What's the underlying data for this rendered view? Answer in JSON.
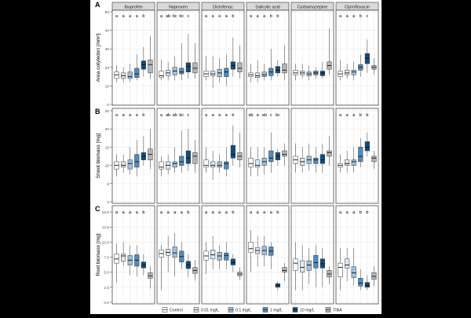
{
  "chart_data": {
    "type": "box",
    "facets": [
      "Ibuprofen",
      "Naproxen",
      "Diclofenac",
      "Salicylic acid",
      "Carbamazepine",
      "Ciprofloxacin"
    ],
    "groups": [
      "Control",
      "0.01 mg/L",
      "0.1 mg/L",
      "1 mg/L",
      "10 mg/L",
      "TIBA"
    ],
    "colors": [
      "#ffffff",
      "#dbe9f6",
      "#9dc0de",
      "#4f8cbf",
      "#0f4c7d",
      "#b5b5b5"
    ],
    "box_stat_order": [
      "median",
      "q1",
      "q3",
      "whisker_low",
      "whisker_high"
    ],
    "grid": true,
    "legend_position": "bottom",
    "rows": [
      {
        "panel": "A",
        "ylabel": "Area cotyledon [mm²]",
        "ylim": [
          0,
          50
        ],
        "ticks": [
          "0",
          "10",
          "20",
          "30",
          "40",
          "50"
        ],
        "tick_values": [
          0,
          10,
          20,
          30,
          40,
          50
        ],
        "letters": [
          [
            "a",
            "a",
            "a",
            "a",
            "b"
          ],
          [
            "a",
            "ab",
            "bc",
            "bc",
            "c"
          ],
          [
            "a",
            "a",
            "a",
            "a",
            "b"
          ],
          [
            "a",
            "a",
            "a",
            "b",
            "b"
          ],
          [],
          [
            "a",
            "a",
            "a",
            "b",
            "c"
          ]
        ],
        "boxes": [
          [
            [
              16,
              14,
              17.5,
              12,
              21
            ],
            [
              15.5,
              14,
              17,
              12,
              20
            ],
            [
              15,
              14,
              17.5,
              12,
              22
            ],
            [
              16.5,
              14.5,
              19.5,
              13,
              27
            ],
            [
              21.5,
              19,
              23.5,
              15,
              31
            ],
            [
              21.5,
              17,
              24,
              14,
              37
            ]
          ],
          [
            [
              15.5,
              14.5,
              18,
              13,
              24
            ],
            [
              17,
              15.5,
              18.5,
              13,
              23
            ],
            [
              18,
              16,
              20,
              13,
              26
            ],
            [
              17.5,
              16.5,
              19.5,
              13,
              33
            ],
            [
              20.5,
              17.5,
              22.5,
              14,
              38
            ],
            [
              19.5,
              17,
              22.5,
              14,
              33
            ]
          ],
          [
            [
              16.5,
              15,
              18,
              13,
              26
            ],
            [
              16.5,
              15.5,
              18,
              9,
              26
            ],
            [
              17,
              15,
              19,
              12,
              25
            ],
            [
              17.5,
              15,
              19.5,
              10,
              27
            ],
            [
              21,
              19,
              23,
              15,
              36
            ],
            [
              19.5,
              17.5,
              22.5,
              14,
              32
            ]
          ],
          [
            [
              16,
              15,
              17,
              12,
              22
            ],
            [
              15.5,
              14.5,
              17,
              12,
              24
            ],
            [
              16,
              15,
              17.5,
              13,
              22
            ],
            [
              17.5,
              15.5,
              19.5,
              13,
              30
            ],
            [
              18.5,
              17,
              20.5,
              15,
              24
            ],
            [
              18.5,
              17,
              22,
              13,
              32
            ]
          ],
          [
            [
              17,
              16,
              18.5,
              13,
              22
            ],
            [
              17,
              16,
              18,
              14,
              22
            ],
            [
              16.5,
              15.5,
              17.5,
              13,
              21
            ],
            [
              17,
              16,
              18,
              14,
              20
            ],
            [
              17,
              15.5,
              18,
              14,
              23
            ],
            [
              21,
              19,
              23,
              16,
              41
            ]
          ],
          [
            [
              16.5,
              15,
              18,
              13,
              24
            ],
            [
              17,
              16,
              18.5,
              14,
              22
            ],
            [
              17.5,
              16,
              18.5,
              13,
              23
            ],
            [
              20,
              18.5,
              21.5,
              15,
              27
            ],
            [
              25,
              22,
              27.5,
              17,
              35
            ],
            [
              20,
              19,
              21,
              16,
              25
            ]
          ]
        ]
      },
      {
        "panel": "B",
        "ylabel": "Shoot biomass [mg]",
        "ylim": [
          0,
          25
        ],
        "ticks": [
          "0",
          "5",
          "10",
          "15",
          "20",
          "25"
        ],
        "tick_values": [
          0,
          5,
          10,
          15,
          20,
          25
        ],
        "letters": [
          [
            "a",
            "a",
            "a",
            "a",
            "b"
          ],
          [
            "a",
            "ab",
            "ab",
            "bc",
            "c"
          ],
          [
            "a",
            "a",
            "a",
            "a",
            "b"
          ],
          [
            "ab",
            "a",
            "ab",
            "c",
            "bc"
          ],
          [],
          [
            "a",
            "a",
            "a",
            "b",
            "b"
          ]
        ],
        "boxes": [
          [
            [
              10,
              9,
              11,
              7,
              13
            ],
            [
              10,
              9.5,
              11,
              8,
              13
            ],
            [
              10.5,
              9,
              11.5,
              7.5,
              15
            ],
            [
              11,
              9.5,
              13,
              7,
              17
            ],
            [
              12.5,
              11.5,
              13.5,
              10,
              18
            ],
            [
              13,
              11.5,
              14.5,
              9,
              20
            ]
          ],
          [
            [
              9.5,
              9,
              11,
              7,
              12.5
            ],
            [
              10,
              9,
              11,
              7.5,
              13
            ],
            [
              10.5,
              9.5,
              11,
              8,
              15
            ],
            [
              11,
              10,
              12.5,
              8,
              19.5
            ],
            [
              12,
              10.5,
              14,
              8.5,
              20
            ],
            [
              12.5,
              10.5,
              13.5,
              8,
              17
            ]
          ],
          [
            [
              10,
              9.5,
              11.5,
              8,
              15
            ],
            [
              10,
              9.5,
              11,
              6,
              14
            ],
            [
              10,
              9.5,
              11,
              8,
              13
            ],
            [
              10.5,
              9,
              11,
              7,
              15
            ],
            [
              13,
              12,
              15.5,
              10,
              21
            ],
            [
              12.5,
              11.5,
              13.5,
              9.5,
              19
            ]
          ],
          [
            [
              10.5,
              9.5,
              12,
              7,
              15
            ],
            [
              10,
              9.5,
              11.5,
              7,
              15
            ],
            [
              11,
              10,
              12,
              7.5,
              15
            ],
            [
              12,
              11,
              14,
              8,
              19
            ],
            [
              12.5,
              11.5,
              13.5,
              10,
              14.5
            ],
            [
              13,
              12.5,
              14,
              10,
              16
            ]
          ],
          [
            [
              11.5,
              10.5,
              12.5,
              8,
              16
            ],
            [
              11,
              10,
              12,
              8,
              15
            ],
            [
              11.5,
              10.5,
              12.5,
              8.5,
              16
            ],
            [
              11.5,
              10.5,
              12,
              8,
              15
            ],
            [
              11.5,
              10.5,
              13,
              8,
              16
            ],
            [
              13.5,
              12.5,
              14,
              10,
              18
            ]
          ],
          [
            [
              10,
              9.5,
              10.5,
              8,
              13
            ],
            [
              10.5,
              10,
              11.5,
              8,
              14
            ],
            [
              11,
              10,
              11.5,
              8,
              15
            ],
            [
              12.5,
              11,
              15,
              9.5,
              17.5
            ],
            [
              15,
              14,
              16.5,
              12.5,
              19
            ],
            [
              12,
              11,
              12.5,
              9,
              14
            ]
          ]
        ]
      },
      {
        "panel": "C",
        "ylabel": "Root biomass [mg]",
        "ylim": [
          0,
          15
        ],
        "ticks": [
          "0.0",
          "2.5",
          "5.0",
          "7.5",
          "10.0",
          "12.5",
          "15.0"
        ],
        "tick_values": [
          0,
          2.5,
          5,
          7.5,
          10,
          12.5,
          15
        ],
        "letters": [
          [
            "a",
            "a",
            "a",
            "a",
            "b"
          ],
          [
            "a",
            "a",
            "a",
            "a",
            "b"
          ],
          [
            "a",
            "a",
            "a",
            "a",
            "b"
          ],
          [
            "a",
            "a",
            "a",
            "a",
            "b"
          ],
          [],
          [
            "a",
            "a",
            "a",
            "b",
            "b"
          ]
        ],
        "boxes": [
          [
            [
              7.2,
              6.5,
              8,
              3.3,
              9.8
            ],
            [
              7.7,
              6.8,
              8,
              6,
              10
            ],
            [
              7,
              6.2,
              7.8,
              4.5,
              9.5
            ],
            [
              7,
              6,
              7.9,
              4.3,
              9.5
            ],
            [
              6.2,
              5.7,
              6.7,
              4.5,
              8
            ],
            [
              4.4,
              4,
              4.9,
              2.3,
              6
            ]
          ],
          [
            [
              8.1,
              7.5,
              8.7,
              2,
              9.5
            ],
            [
              8.3,
              7.8,
              8.8,
              5,
              11
            ],
            [
              8.2,
              7.5,
              9.2,
              4.3,
              11.5
            ],
            [
              7.6,
              6.7,
              8.5,
              5.5,
              10
            ],
            [
              6.2,
              5.6,
              6.8,
              4.2,
              8
            ],
            [
              5.3,
              4.8,
              5.8,
              3.6,
              7
            ]
          ],
          [
            [
              7.7,
              7,
              8.5,
              4.7,
              10
            ],
            [
              7.9,
              7.2,
              8.7,
              5.5,
              11
            ],
            [
              7.7,
              7,
              8.3,
              5.5,
              9.5
            ],
            [
              7.8,
              7,
              8.2,
              5.5,
              10
            ],
            [
              6.6,
              6.2,
              7.2,
              5,
              8
            ],
            [
              4.7,
              4.4,
              5,
              3.7,
              5.8
            ]
          ],
          [
            [
              8.9,
              8.3,
              10,
              5,
              12
            ],
            [
              8.6,
              8.1,
              9.1,
              6,
              11
            ],
            [
              8.6,
              7.9,
              9.3,
              6,
              11
            ],
            [
              8.5,
              7.8,
              9.2,
              5.5,
              10
            ],
            [
              2.8,
              2.5,
              3.1,
              2,
              3.5
            ],
            [
              5.3,
              5,
              5.8,
              3.5,
              6.5
            ]
          ],
          [
            [
              6.5,
              5.3,
              7.2,
              2,
              10
            ],
            [
              5.8,
              5,
              6.9,
              2,
              9.5
            ],
            [
              6.2,
              5.3,
              6.9,
              3,
              9
            ],
            [
              6.6,
              5.7,
              7.8,
              2.5,
              9.5
            ],
            [
              6.4,
              5.7,
              7.2,
              2.5,
              9
            ],
            [
              4.7,
              4.2,
              5.3,
              3,
              6
            ]
          ],
          [
            [
              5.8,
              4.2,
              6.5,
              2,
              9
            ],
            [
              6.2,
              5.7,
              7.2,
              3.5,
              9
            ],
            [
              4.9,
              4.1,
              5.9,
              2.8,
              9
            ],
            [
              3.2,
              2.7,
              4,
              2,
              5.5
            ],
            [
              2.8,
              2.5,
              3.3,
              2,
              4.5
            ],
            [
              4.3,
              3.8,
              4.9,
              2.7,
              6
            ]
          ]
        ]
      }
    ]
  }
}
